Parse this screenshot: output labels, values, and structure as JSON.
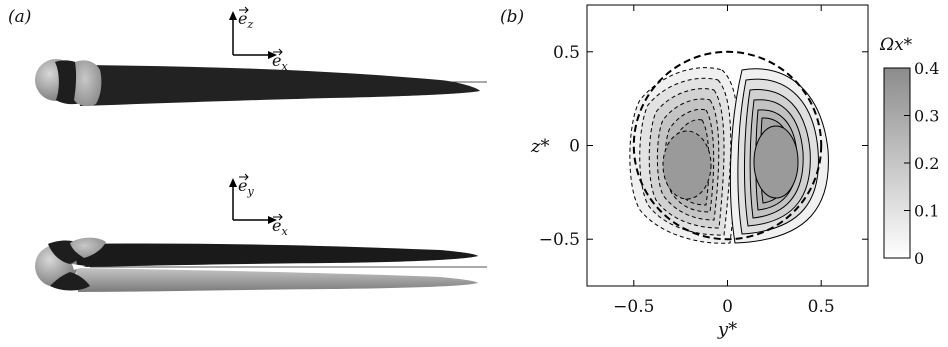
{
  "panel_a": {
    "label": "(a)",
    "top_axes": {
      "up": "e_z",
      "right": "e_x"
    },
    "bottom_axes": {
      "up": "e_y",
      "right": "e_x"
    }
  },
  "panel_b": {
    "label": "(b)",
    "xlabel": "y*",
    "ylabel": "z*",
    "xticks": [
      "−0.5",
      "0",
      "0.5"
    ],
    "yticks": [
      "0.5",
      "0",
      "−0.5"
    ],
    "xlim": [
      -0.75,
      0.75
    ],
    "ylim": [
      -0.75,
      0.75
    ],
    "colorbar": {
      "title": "Ωx*",
      "ticks": [
        "0.4",
        "0.3",
        "0.2",
        "0.1",
        "0"
      ],
      "range": [
        0,
        0.4
      ]
    }
  },
  "chart_data": {
    "type": "contour",
    "xlabel": "y*",
    "ylabel": "z*",
    "xlim": [
      -0.75,
      0.75
    ],
    "ylim": [
      -0.75,
      0.75
    ],
    "circle_radius": 0.5,
    "vortices": [
      {
        "center": [
          -0.22,
          -0.13
        ],
        "sign": "negative",
        "max_abs": 0.4
      },
      {
        "center": [
          0.22,
          -0.13
        ],
        "sign": "positive",
        "max_abs": 0.4
      }
    ],
    "colorbar_range": [
      0,
      0.4
    ]
  }
}
